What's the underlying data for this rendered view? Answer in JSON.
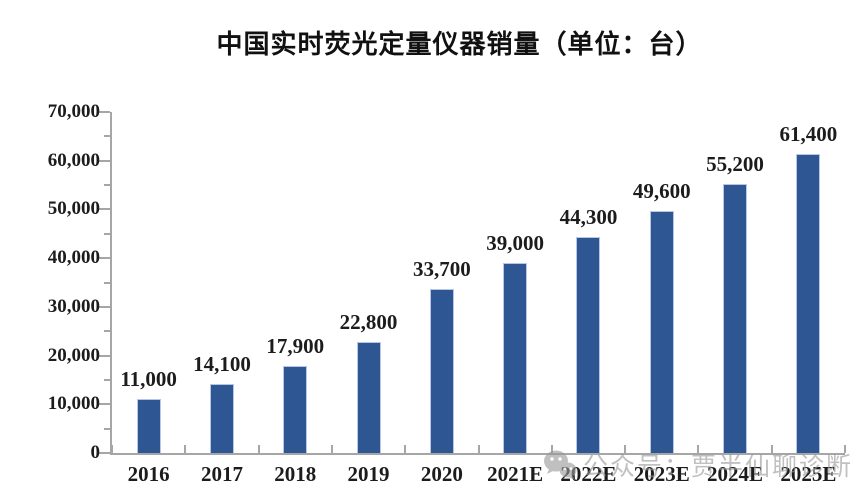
{
  "title": "中国实时荧光定量仪器销量（单位：台）",
  "watermark": {
    "icon": "wechat-icon",
    "text": "公众号：贾半仙聊诊断"
  },
  "chart_data": {
    "type": "bar",
    "title": "中国实时荧光定量仪器销量（单位：台）",
    "categories": [
      "2016",
      "2017",
      "2018",
      "2019",
      "2020",
      "2021E",
      "2022E",
      "2023E",
      "2024E",
      "2025E"
    ],
    "values": [
      11000,
      14100,
      17900,
      22800,
      33700,
      39000,
      44300,
      49600,
      55200,
      61400
    ],
    "data_labels": [
      "11,000",
      "14,100",
      "17,900",
      "22,800",
      "33,700",
      "39,000",
      "44,300",
      "49,600",
      "55,200",
      "61,400"
    ],
    "xlabel": "",
    "ylabel": "",
    "ylim": [
      0,
      70000
    ],
    "y_major_step": 10000,
    "y_minor_step": 5000,
    "y_tick_labels": [
      "0",
      "10,000",
      "20,000",
      "30,000",
      "40,000",
      "50,000",
      "60,000",
      "70,000"
    ],
    "grid": false,
    "legend": "none",
    "bar_color": "#2E5693",
    "bar_border_color": "#B7C6E3",
    "axis_color": "#A6A6A6",
    "label_color": "#1C1C1C",
    "watermark_color": "#9A9A9A"
  }
}
